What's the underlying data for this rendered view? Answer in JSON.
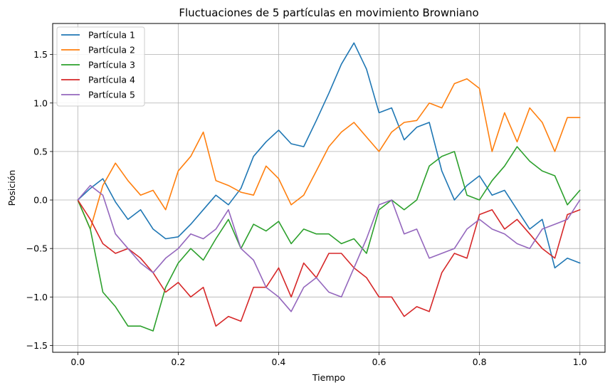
{
  "chart_data": {
    "type": "line",
    "title": "Fluctuaciones de 5 partículas en movimiento Browniano",
    "xlabel": "Tiempo",
    "ylabel": "Posición",
    "xlim": [
      -0.05,
      1.05
    ],
    "ylim": [
      -1.57,
      1.82
    ],
    "xticks": [
      0.0,
      0.2,
      0.4,
      0.6,
      0.8,
      1.0
    ],
    "xtick_labels": [
      "0.0",
      "0.2",
      "0.4",
      "0.6",
      "0.8",
      "1.0"
    ],
    "yticks": [
      -1.5,
      -1.0,
      -0.5,
      0.0,
      0.5,
      1.0,
      1.5
    ],
    "ytick_labels": [
      "−1.5",
      "−1.0",
      "−0.5",
      "0.0",
      "0.5",
      "1.0",
      "1.5"
    ],
    "grid": true,
    "legend_position": "upper-left",
    "x": [
      0.0,
      0.025,
      0.05,
      0.075,
      0.1,
      0.125,
      0.15,
      0.175,
      0.2,
      0.225,
      0.25,
      0.275,
      0.3,
      0.325,
      0.35,
      0.375,
      0.4,
      0.425,
      0.45,
      0.475,
      0.5,
      0.525,
      0.55,
      0.575,
      0.6,
      0.625,
      0.65,
      0.675,
      0.7,
      0.725,
      0.75,
      0.775,
      0.8,
      0.825,
      0.85,
      0.875,
      0.9,
      0.925,
      0.95,
      0.975,
      1.0
    ],
    "series": [
      {
        "name": "Partícula 1",
        "color": "#1f77b4",
        "values": [
          0.0,
          0.12,
          0.22,
          -0.02,
          -0.2,
          -0.1,
          -0.3,
          -0.4,
          -0.38,
          -0.25,
          -0.1,
          0.05,
          -0.05,
          0.12,
          0.45,
          0.6,
          0.72,
          0.58,
          0.55,
          0.82,
          1.1,
          1.4,
          1.62,
          1.35,
          0.9,
          0.95,
          0.62,
          0.75,
          0.8,
          0.3,
          0.0,
          0.15,
          0.25,
          0.05,
          0.1,
          -0.1,
          -0.3,
          -0.2,
          -0.7,
          -0.6,
          -0.65
        ]
      },
      {
        "name": "Partícula 2",
        "color": "#ff7f0e",
        "values": [
          0.0,
          -0.3,
          0.15,
          0.38,
          0.2,
          0.05,
          0.1,
          -0.1,
          0.3,
          0.45,
          0.7,
          0.2,
          0.15,
          0.08,
          0.05,
          0.35,
          0.22,
          -0.05,
          0.05,
          0.3,
          0.55,
          0.7,
          0.8,
          0.65,
          0.5,
          0.7,
          0.8,
          0.82,
          1.0,
          0.95,
          1.2,
          1.25,
          1.15,
          0.5,
          0.9,
          0.6,
          0.95,
          0.8,
          0.5,
          0.85,
          0.85
        ]
      },
      {
        "name": "Partícula 3",
        "color": "#2ca02c",
        "values": [
          0.0,
          -0.3,
          -0.95,
          -1.1,
          -1.3,
          -1.3,
          -1.35,
          -0.9,
          -0.65,
          -0.5,
          -0.62,
          -0.4,
          -0.2,
          -0.5,
          -0.25,
          -0.32,
          -0.22,
          -0.45,
          -0.3,
          -0.35,
          -0.35,
          -0.45,
          -0.4,
          -0.55,
          -0.1,
          0.0,
          -0.1,
          0.0,
          0.35,
          0.45,
          0.5,
          0.05,
          0.0,
          0.2,
          0.35,
          0.55,
          0.4,
          0.3,
          0.25,
          -0.05,
          0.1
        ]
      },
      {
        "name": "Partícula 4",
        "color": "#d62728",
        "values": [
          0.0,
          -0.2,
          -0.45,
          -0.55,
          -0.5,
          -0.6,
          -0.75,
          -0.95,
          -0.85,
          -1.0,
          -0.9,
          -1.3,
          -1.2,
          -1.25,
          -0.9,
          -0.9,
          -0.7,
          -1.0,
          -0.65,
          -0.8,
          -0.55,
          -0.55,
          -0.7,
          -0.8,
          -1.0,
          -1.0,
          -1.2,
          -1.1,
          -1.15,
          -0.75,
          -0.55,
          -0.6,
          -0.15,
          -0.1,
          -0.3,
          -0.2,
          -0.35,
          -0.5,
          -0.6,
          -0.15,
          -0.1
        ]
      },
      {
        "name": "Partícula 5",
        "color": "#9467bd",
        "values": [
          0.0,
          0.15,
          0.05,
          -0.35,
          -0.5,
          -0.65,
          -0.75,
          -0.6,
          -0.5,
          -0.35,
          -0.4,
          -0.3,
          -0.1,
          -0.5,
          -0.62,
          -0.9,
          -1.0,
          -1.15,
          -0.9,
          -0.8,
          -0.95,
          -1.0,
          -0.7,
          -0.4,
          -0.05,
          0.0,
          -0.35,
          -0.3,
          -0.6,
          -0.55,
          -0.5,
          -0.3,
          -0.2,
          -0.3,
          -0.35,
          -0.45,
          -0.5,
          -0.3,
          -0.25,
          -0.2,
          0.0
        ]
      }
    ]
  }
}
